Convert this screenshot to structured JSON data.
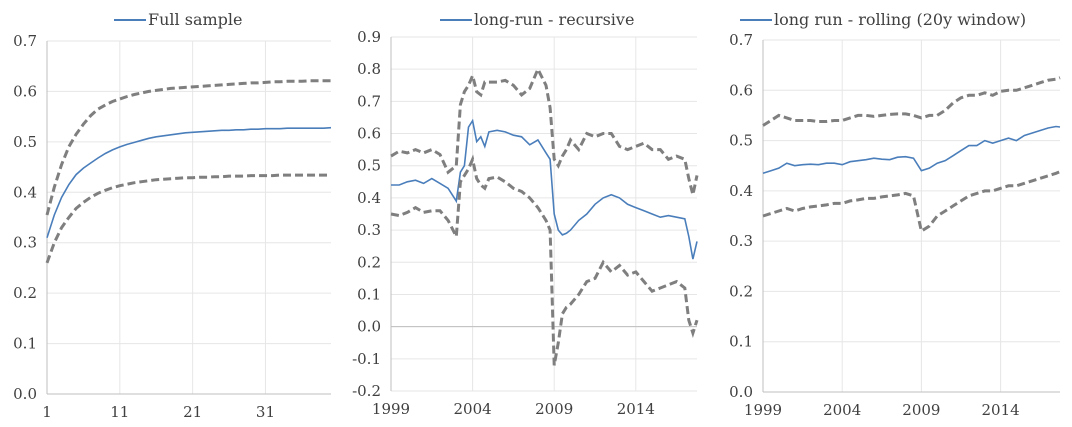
{
  "chart_data": [
    {
      "type": "line",
      "legend": "Full sample",
      "legend_position": "top",
      "grid": true,
      "ylim": [
        0.0,
        0.7
      ],
      "yticks": [
        "0.0",
        "0.1",
        "0.2",
        "0.3",
        "0.4",
        "0.5",
        "0.6",
        "0.7"
      ],
      "xlim": [
        1,
        40
      ],
      "xticks": [
        "1",
        "11",
        "21",
        "31"
      ],
      "x": [
        1,
        2,
        3,
        4,
        5,
        6,
        7,
        8,
        9,
        10,
        11,
        12,
        13,
        14,
        15,
        16,
        17,
        18,
        19,
        20,
        21,
        22,
        23,
        24,
        25,
        26,
        27,
        28,
        29,
        30,
        31,
        32,
        33,
        34,
        35,
        36,
        37,
        38,
        39,
        40
      ],
      "series": [
        {
          "name": "Full sample",
          "role": "estimate",
          "color": "#4a7ebb",
          "values": [
            0.31,
            0.355,
            0.39,
            0.415,
            0.435,
            0.448,
            0.458,
            0.468,
            0.477,
            0.484,
            0.49,
            0.495,
            0.499,
            0.503,
            0.507,
            0.51,
            0.512,
            0.514,
            0.516,
            0.518,
            0.519,
            0.52,
            0.521,
            0.522,
            0.523,
            0.523,
            0.524,
            0.524,
            0.525,
            0.525,
            0.526,
            0.526,
            0.526,
            0.527,
            0.527,
            0.527,
            0.527,
            0.527,
            0.527,
            0.528
          ]
        },
        {
          "role": "upper-band",
          "color": "#7f7f7f",
          "values": [
            0.355,
            0.41,
            0.455,
            0.49,
            0.515,
            0.535,
            0.552,
            0.565,
            0.573,
            0.58,
            0.585,
            0.59,
            0.594,
            0.597,
            0.6,
            0.602,
            0.604,
            0.606,
            0.607,
            0.608,
            0.609,
            0.61,
            0.611,
            0.612,
            0.613,
            0.614,
            0.615,
            0.616,
            0.617,
            0.617,
            0.618,
            0.619,
            0.619,
            0.62,
            0.62,
            0.62,
            0.621,
            0.621,
            0.621,
            0.621
          ]
        },
        {
          "role": "lower-band",
          "color": "#7f7f7f",
          "values": [
            0.26,
            0.3,
            0.33,
            0.35,
            0.368,
            0.38,
            0.39,
            0.398,
            0.404,
            0.409,
            0.413,
            0.416,
            0.419,
            0.421,
            0.423,
            0.425,
            0.426,
            0.427,
            0.428,
            0.429,
            0.429,
            0.43,
            0.43,
            0.431,
            0.431,
            0.432,
            0.432,
            0.432,
            0.433,
            0.433,
            0.433,
            0.433,
            0.434,
            0.434,
            0.434,
            0.434,
            0.434,
            0.434,
            0.434,
            0.434
          ]
        }
      ]
    },
    {
      "type": "line",
      "legend": "long-run - recursive",
      "legend_position": "top",
      "grid": true,
      "ylim": [
        -0.2,
        0.9
      ],
      "yticks": [
        "-0.2",
        "-0.1",
        "0.0",
        "0.1",
        "0.2",
        "0.3",
        "0.4",
        "0.5",
        "0.6",
        "0.7",
        "0.8",
        "0.9"
      ],
      "xlim": [
        1999,
        2017.75
      ],
      "xticks": [
        "1999",
        "2004",
        "2009",
        "2014"
      ],
      "x": [
        1999,
        1999.5,
        2000,
        2000.5,
        2001,
        2001.5,
        2002,
        2002.5,
        2003,
        2003.25,
        2003.5,
        2003.75,
        2004,
        2004.25,
        2004.5,
        2004.75,
        2005,
        2005.5,
        2006,
        2006.5,
        2007,
        2007.5,
        2008,
        2008.5,
        2008.75,
        2009,
        2009.25,
        2009.5,
        2009.75,
        2010,
        2010.5,
        2011,
        2011.5,
        2012,
        2012.5,
        2013,
        2013.5,
        2014,
        2014.5,
        2015,
        2015.5,
        2016,
        2016.5,
        2017,
        2017.25,
        2017.5,
        2017.75
      ],
      "series": [
        {
          "name": "long-run - recursive",
          "role": "estimate",
          "color": "#4a7ebb",
          "values": [
            0.44,
            0.44,
            0.45,
            0.455,
            0.445,
            0.46,
            0.445,
            0.43,
            0.39,
            0.48,
            0.5,
            0.62,
            0.64,
            0.575,
            0.59,
            0.56,
            0.605,
            0.61,
            0.605,
            0.595,
            0.59,
            0.565,
            0.58,
            0.54,
            0.52,
            0.35,
            0.3,
            0.285,
            0.29,
            0.3,
            0.33,
            0.35,
            0.38,
            0.4,
            0.41,
            0.4,
            0.38,
            0.37,
            0.36,
            0.35,
            0.34,
            0.345,
            0.34,
            0.335,
            0.28,
            0.21,
            0.265
          ]
        },
        {
          "role": "upper-band",
          "color": "#7f7f7f",
          "values": [
            0.53,
            0.545,
            0.54,
            0.55,
            0.54,
            0.55,
            0.535,
            0.48,
            0.5,
            0.69,
            0.73,
            0.75,
            0.78,
            0.73,
            0.72,
            0.76,
            0.76,
            0.76,
            0.765,
            0.75,
            0.72,
            0.74,
            0.8,
            0.75,
            0.68,
            0.52,
            0.5,
            0.53,
            0.55,
            0.58,
            0.55,
            0.6,
            0.59,
            0.6,
            0.6,
            0.56,
            0.55,
            0.56,
            0.57,
            0.55,
            0.55,
            0.52,
            0.53,
            0.52,
            0.46,
            0.41,
            0.47
          ]
        },
        {
          "role": "lower-band",
          "color": "#7f7f7f",
          "values": [
            0.35,
            0.345,
            0.355,
            0.37,
            0.355,
            0.36,
            0.36,
            0.33,
            0.28,
            0.45,
            0.47,
            0.49,
            0.52,
            0.46,
            0.44,
            0.43,
            0.46,
            0.465,
            0.45,
            0.43,
            0.42,
            0.4,
            0.37,
            0.33,
            0.3,
            -0.12,
            -0.05,
            0.04,
            0.06,
            0.07,
            0.1,
            0.14,
            0.15,
            0.2,
            0.17,
            0.19,
            0.16,
            0.17,
            0.14,
            0.11,
            0.12,
            0.13,
            0.14,
            0.12,
            0.02,
            -0.02,
            0.02
          ]
        }
      ]
    },
    {
      "type": "line",
      "legend": "long run - rolling (20y window)",
      "legend_position": "top",
      "grid": true,
      "ylim": [
        0.0,
        0.7
      ],
      "yticks": [
        "0.0",
        "0.1",
        "0.2",
        "0.3",
        "0.4",
        "0.5",
        "0.6",
        "0.7"
      ],
      "xlim": [
        1999,
        2017.75
      ],
      "xticks": [
        "1999",
        "2004",
        "2009",
        "2014"
      ],
      "x": [
        1999,
        1999.5,
        2000,
        2000.5,
        2001,
        2001.5,
        2002,
        2002.5,
        2003,
        2003.5,
        2004,
        2004.5,
        2005,
        2005.5,
        2006,
        2006.5,
        2007,
        2007.5,
        2008,
        2008.5,
        2009,
        2009.5,
        2010,
        2010.5,
        2011,
        2011.5,
        2012,
        2012.5,
        2013,
        2013.5,
        2014,
        2014.5,
        2015,
        2015.5,
        2016,
        2016.5,
        2017,
        2017.5,
        2017.75
      ],
      "series": [
        {
          "name": "long run - rolling (20y window)",
          "role": "estimate",
          "color": "#4a7ebb",
          "values": [
            0.435,
            0.44,
            0.445,
            0.455,
            0.45,
            0.452,
            0.453,
            0.452,
            0.455,
            0.455,
            0.452,
            0.458,
            0.46,
            0.462,
            0.465,
            0.463,
            0.462,
            0.467,
            0.468,
            0.465,
            0.44,
            0.445,
            0.455,
            0.46,
            0.47,
            0.48,
            0.49,
            0.49,
            0.5,
            0.495,
            0.5,
            0.505,
            0.5,
            0.51,
            0.515,
            0.52,
            0.525,
            0.528,
            0.527
          ]
        },
        {
          "role": "upper-band",
          "color": "#7f7f7f",
          "values": [
            0.53,
            0.54,
            0.55,
            0.545,
            0.54,
            0.54,
            0.54,
            0.538,
            0.538,
            0.54,
            0.54,
            0.545,
            0.55,
            0.55,
            0.548,
            0.55,
            0.552,
            0.553,
            0.553,
            0.55,
            0.545,
            0.55,
            0.55,
            0.56,
            0.575,
            0.585,
            0.59,
            0.59,
            0.595,
            0.59,
            0.598,
            0.6,
            0.6,
            0.605,
            0.61,
            0.615,
            0.62,
            0.622,
            0.625
          ]
        },
        {
          "role": "lower-band",
          "color": "#7f7f7f",
          "values": [
            0.35,
            0.355,
            0.36,
            0.365,
            0.36,
            0.365,
            0.368,
            0.37,
            0.372,
            0.375,
            0.375,
            0.38,
            0.382,
            0.385,
            0.385,
            0.388,
            0.39,
            0.392,
            0.395,
            0.39,
            0.32,
            0.33,
            0.35,
            0.36,
            0.37,
            0.38,
            0.39,
            0.395,
            0.4,
            0.4,
            0.405,
            0.41,
            0.41,
            0.415,
            0.42,
            0.425,
            0.43,
            0.435,
            0.438
          ]
        }
      ]
    }
  ]
}
